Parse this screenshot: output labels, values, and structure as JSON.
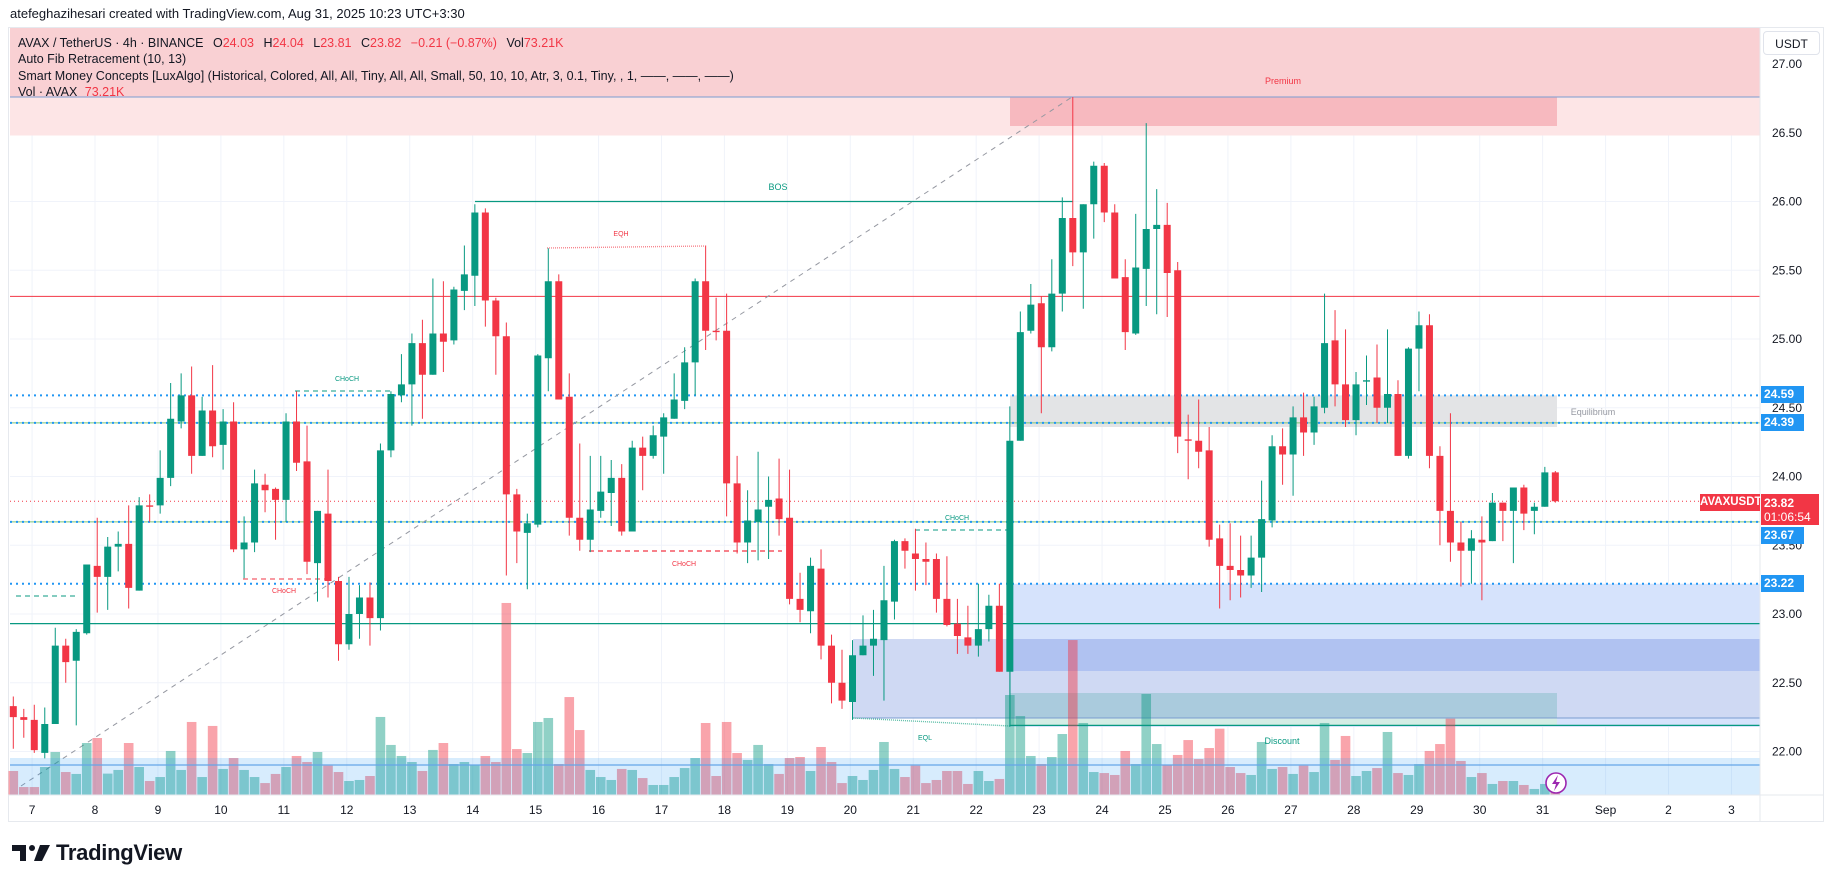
{
  "header": {
    "caption": "atefeghazihesari created with TradingView.com, Aug 31, 2025 10:23 UTC+3:30"
  },
  "legend": {
    "symbol": "AVAX / TetherUS · 4h · BINANCE",
    "o_label": "O",
    "o": "24.03",
    "h_label": "H",
    "h": "24.04",
    "l_label": "L",
    "l": "23.81",
    "c_label": "C",
    "c": "23.82",
    "change": "−0.21 (−0.87%)",
    "vol_label": "Vol",
    "vol": "73.21K",
    "indicator1": "Auto Fib Retracement (10, 13)",
    "indicator2": "Smart Money Concepts [LuxAlgo] (Historical, Colored, All, All, Tiny, All, All, Small, 50, 10, 10, Atr, 3, 0.1, Tiny, , 1, ——, ——, ——)",
    "indicator3_label": "Vol · AVAX",
    "indicator3_value": "73.21K"
  },
  "price_axis": {
    "currency_button": "USDT",
    "ticks": [
      "22.00",
      "22.50",
      "23.00",
      "23.50",
      "24.00",
      "24.50",
      "25.00",
      "25.50",
      "26.00",
      "26.50",
      "27.00"
    ],
    "level_labels": [
      "24.59",
      "24.39",
      "23.67",
      "23.22"
    ],
    "current": {
      "symbol": "AVAXUSDT",
      "price": "23.82",
      "countdown": "01:06:54"
    }
  },
  "time_axis": {
    "labels": [
      "7",
      "8",
      "9",
      "10",
      "11",
      "12",
      "13",
      "14",
      "15",
      "16",
      "17",
      "18",
      "19",
      "20",
      "21",
      "22",
      "23",
      "24",
      "25",
      "26",
      "27",
      "28",
      "29",
      "30",
      "31",
      "Sep",
      "2",
      "3"
    ]
  },
  "annotations": {
    "premium": "Premium",
    "equilibrium": "Equilibrium",
    "discount": "Discount",
    "bos": "BOS",
    "eqh": "EQH",
    "eql": "EQL",
    "choch1": "CHoCH",
    "choch2": "CHoCH",
    "choch3": "CHoCH",
    "choch4": "CHoCH"
  },
  "colors": {
    "up": "#089981",
    "down": "#f23645",
    "level": "#2196f3",
    "accent": "#2962ff"
  },
  "chart_data": {
    "type": "candlestick",
    "symbol": "AVAXUSDT",
    "interval": "4h",
    "exchange": "BINANCE",
    "ylim": [
      21.72,
      27.26
    ],
    "levels": {
      "resistance": 25.31,
      "blue_dotted": [
        24.59,
        23.22
      ],
      "green": [
        24.39,
        23.67
      ],
      "current": 23.82,
      "support": 22.93,
      "discount_floor": 22.19,
      "bos": 26.0
    },
    "ohlc": [
      [
        22.33,
        22.4,
        22.02,
        22.25
      ],
      [
        22.25,
        22.31,
        22.1,
        22.23
      ],
      [
        22.23,
        22.34,
        21.99,
        22.01
      ],
      [
        21.99,
        22.32,
        21.95,
        22.2
      ],
      [
        22.2,
        22.9,
        22.2,
        22.77
      ],
      [
        22.77,
        22.82,
        22.5,
        22.65
      ],
      [
        22.66,
        22.89,
        22.19,
        22.87
      ],
      [
        22.86,
        23.36,
        22.85,
        23.36
      ],
      [
        23.35,
        23.7,
        23.01,
        23.27
      ],
      [
        23.27,
        23.56,
        23.03,
        23.49
      ],
      [
        23.49,
        23.6,
        23.31,
        23.51
      ],
      [
        23.51,
        23.79,
        23.04,
        23.19
      ],
      [
        23.17,
        23.85,
        23.17,
        23.79
      ],
      [
        23.79,
        23.87,
        23.67,
        23.78
      ],
      [
        23.79,
        24.19,
        23.73,
        23.99
      ],
      [
        23.99,
        24.68,
        23.93,
        24.42
      ],
      [
        24.4,
        24.75,
        24.35,
        24.59
      ],
      [
        24.59,
        24.8,
        24.02,
        24.15
      ],
      [
        24.15,
        24.58,
        24.15,
        24.48
      ],
      [
        24.48,
        24.81,
        24.14,
        24.22
      ],
      [
        24.23,
        24.49,
        24.05,
        24.4
      ],
      [
        24.4,
        24.54,
        23.45,
        23.47
      ],
      [
        23.47,
        23.71,
        23.26,
        23.52
      ],
      [
        23.52,
        24.05,
        23.45,
        23.95
      ],
      [
        23.94,
        24.02,
        23.74,
        23.9
      ],
      [
        23.91,
        23.92,
        23.54,
        23.83
      ],
      [
        23.83,
        24.46,
        23.67,
        24.4
      ],
      [
        24.4,
        24.62,
        24.04,
        24.1
      ],
      [
        24.11,
        24.37,
        23.29,
        23.38
      ],
      [
        23.37,
        23.75,
        23.09,
        23.75
      ],
      [
        23.73,
        24.05,
        23.12,
        23.24
      ],
      [
        23.24,
        23.27,
        22.66,
        22.78
      ],
      [
        22.78,
        23.27,
        22.74,
        23.0
      ],
      [
        23.0,
        23.21,
        22.82,
        23.12
      ],
      [
        23.12,
        23.23,
        22.77,
        22.97
      ],
      [
        22.97,
        24.24,
        22.88,
        24.19
      ],
      [
        24.19,
        24.62,
        24.14,
        24.6
      ],
      [
        24.59,
        24.89,
        24.54,
        24.67
      ],
      [
        24.67,
        25.04,
        24.37,
        24.97
      ],
      [
        24.97,
        25.14,
        24.42,
        24.74
      ],
      [
        24.74,
        25.44,
        24.74,
        25.04
      ],
      [
        25.04,
        25.42,
        24.76,
        24.98
      ],
      [
        24.99,
        25.38,
        24.96,
        25.36
      ],
      [
        25.35,
        25.68,
        25.21,
        25.47
      ],
      [
        25.46,
        25.98,
        25.24,
        25.92
      ],
      [
        25.92,
        25.95,
        25.09,
        25.28
      ],
      [
        25.28,
        25.3,
        24.74,
        25.02
      ],
      [
        25.02,
        25.12,
        23.28,
        23.87
      ],
      [
        23.87,
        23.91,
        23.37,
        23.6
      ],
      [
        23.59,
        23.73,
        23.18,
        23.66
      ],
      [
        23.65,
        24.89,
        23.63,
        24.88
      ],
      [
        24.86,
        25.66,
        24.62,
        25.42
      ],
      [
        25.42,
        25.47,
        24.56,
        24.56
      ],
      [
        24.58,
        24.75,
        23.57,
        23.7
      ],
      [
        23.7,
        24.24,
        23.46,
        23.54
      ],
      [
        23.54,
        24.15,
        23.45,
        23.76
      ],
      [
        23.75,
        24.15,
        23.7,
        23.89
      ],
      [
        23.88,
        24.12,
        23.64,
        23.99
      ],
      [
        23.99,
        24.09,
        23.57,
        23.6
      ],
      [
        23.6,
        24.26,
        23.6,
        24.21
      ],
      [
        24.21,
        24.29,
        23.9,
        24.15
      ],
      [
        24.15,
        24.37,
        24.13,
        24.3
      ],
      [
        24.29,
        24.46,
        24.02,
        24.43
      ],
      [
        24.42,
        24.75,
        24.42,
        24.56
      ],
      [
        24.55,
        24.94,
        24.49,
        24.83
      ],
      [
        24.83,
        25.44,
        24.59,
        25.42
      ],
      [
        25.42,
        25.68,
        24.92,
        25.06
      ],
      [
        25.06,
        25.3,
        24.99,
        25.05
      ],
      [
        25.06,
        25.33,
        23.71,
        23.95
      ],
      [
        23.95,
        24.15,
        23.44,
        23.52
      ],
      [
        23.52,
        23.9,
        23.37,
        23.68
      ],
      [
        23.67,
        24.18,
        23.39,
        23.76
      ],
      [
        23.78,
        24.0,
        23.4,
        23.83
      ],
      [
        23.84,
        24.13,
        23.57,
        23.69
      ],
      [
        23.7,
        24.05,
        23.07,
        23.11
      ],
      [
        23.11,
        23.3,
        22.94,
        23.03
      ],
      [
        23.02,
        23.41,
        22.86,
        23.35
      ],
      [
        23.33,
        23.47,
        22.67,
        22.77
      ],
      [
        22.77,
        22.85,
        22.35,
        22.5
      ],
      [
        22.5,
        22.74,
        22.31,
        22.37
      ],
      [
        22.36,
        22.81,
        22.23,
        22.7
      ],
      [
        22.7,
        22.99,
        22.7,
        22.77
      ],
      [
        22.77,
        23.03,
        22.55,
        22.82
      ],
      [
        22.81,
        23.35,
        22.37,
        23.1
      ],
      [
        23.09,
        23.54,
        22.96,
        23.53
      ],
      [
        23.53,
        23.55,
        23.33,
        23.46
      ],
      [
        23.44,
        23.62,
        23.17,
        23.4
      ],
      [
        23.4,
        23.52,
        23.21,
        23.38
      ],
      [
        23.4,
        23.44,
        23.01,
        23.11
      ],
      [
        23.11,
        23.42,
        22.91,
        22.92
      ],
      [
        22.93,
        23.11,
        22.71,
        22.84
      ],
      [
        22.83,
        23.06,
        22.71,
        22.77
      ],
      [
        22.77,
        23.22,
        22.69,
        22.89
      ],
      [
        22.89,
        23.14,
        22.8,
        23.06
      ],
      [
        23.06,
        23.22,
        22.58,
        22.58
      ],
      [
        22.58,
        24.51,
        22.18,
        24.26
      ],
      [
        24.26,
        25.2,
        24.26,
        25.05
      ],
      [
        25.06,
        25.4,
        25.04,
        25.25
      ],
      [
        25.26,
        25.31,
        24.46,
        24.94
      ],
      [
        24.94,
        25.58,
        24.91,
        25.33
      ],
      [
        25.33,
        26.03,
        25.2,
        25.88
      ],
      [
        25.88,
        26.76,
        25.53,
        25.63
      ],
      [
        25.63,
        25.98,
        25.22,
        25.98
      ],
      [
        25.98,
        26.29,
        25.73,
        26.26
      ],
      [
        26.26,
        26.28,
        25.85,
        25.92
      ],
      [
        25.92,
        25.98,
        25.44,
        25.44
      ],
      [
        25.45,
        25.58,
        24.92,
        25.05
      ],
      [
        25.04,
        25.91,
        25.03,
        25.52
      ],
      [
        25.51,
        26.57,
        25.24,
        25.8
      ],
      [
        25.8,
        26.09,
        25.18,
        25.83
      ],
      [
        25.83,
        25.99,
        25.16,
        25.48
      ],
      [
        25.5,
        25.56,
        24.17,
        24.29
      ],
      [
        24.27,
        24.45,
        23.98,
        24.26
      ],
      [
        24.26,
        24.56,
        24.06,
        24.18
      ],
      [
        24.19,
        24.36,
        23.49,
        23.54
      ],
      [
        23.55,
        23.65,
        23.04,
        23.35
      ],
      [
        23.35,
        23.66,
        23.1,
        23.32
      ],
      [
        23.32,
        23.57,
        23.12,
        23.28
      ],
      [
        23.28,
        23.57,
        23.19,
        23.41
      ],
      [
        23.41,
        23.97,
        23.16,
        23.69
      ],
      [
        23.68,
        24.3,
        23.63,
        24.22
      ],
      [
        24.22,
        24.35,
        23.94,
        24.16
      ],
      [
        24.16,
        24.51,
        23.86,
        24.43
      ],
      [
        24.43,
        24.61,
        24.15,
        24.32
      ],
      [
        24.32,
        24.58,
        24.23,
        24.51
      ],
      [
        24.5,
        25.33,
        24.46,
        24.97
      ],
      [
        24.99,
        25.21,
        24.51,
        24.67
      ],
      [
        24.67,
        25.07,
        24.36,
        24.41
      ],
      [
        24.41,
        24.76,
        24.3,
        24.67
      ],
      [
        24.69,
        24.88,
        24.52,
        24.7
      ],
      [
        24.72,
        24.96,
        24.39,
        24.5
      ],
      [
        24.5,
        25.07,
        24.39,
        24.6
      ],
      [
        24.6,
        24.7,
        24.15,
        24.15
      ],
      [
        24.15,
        24.94,
        24.13,
        24.93
      ],
      [
        24.93,
        25.2,
        24.62,
        25.1
      ],
      [
        25.1,
        25.18,
        24.06,
        24.15
      ],
      [
        24.15,
        24.22,
        23.5,
        23.75
      ],
      [
        23.75,
        24.46,
        23.38,
        23.52
      ],
      [
        23.52,
        23.67,
        23.2,
        23.46
      ],
      [
        23.46,
        23.61,
        23.22,
        23.55
      ],
      [
        23.54,
        23.71,
        23.1,
        23.52
      ],
      [
        23.53,
        23.88,
        23.53,
        23.81
      ],
      [
        23.81,
        23.81,
        23.53,
        23.75
      ],
      [
        23.75,
        23.92,
        23.37,
        23.92
      ],
      [
        23.92,
        23.94,
        23.61,
        23.73
      ],
      [
        23.75,
        23.81,
        23.58,
        23.78
      ],
      [
        23.78,
        24.07,
        23.78,
        24.03
      ],
      [
        24.03,
        24.04,
        23.81,
        23.82
      ]
    ],
    "volume_k": [
      211,
      70,
      70,
      246,
      378,
      202,
      185,
      457,
      501,
      188,
      220,
      457,
      246,
      123,
      158,
      387,
      220,
      642,
      158,
      607,
      229,
      325,
      220,
      158,
      105,
      185,
      246,
      343,
      290,
      378,
      258,
      202,
      123,
      132,
      167,
      686,
      440,
      343,
      290,
      211,
      396,
      457,
      272,
      290,
      264,
      343,
      290,
      1688,
      404,
      369,
      642,
      677,
      272,
      861,
      571,
      220,
      158,
      132,
      229,
      220,
      149,
      88,
      88,
      158,
      237,
      325,
      633,
      167,
      642,
      369,
      308,
      440,
      272,
      185,
      325,
      334,
      211,
      422,
      290,
      105,
      167,
      132,
      220,
      466,
      229,
      158,
      258,
      105,
      132,
      211,
      211,
      97,
      211,
      123,
      141,
      879,
      694,
      343,
      272,
      334,
      536,
      1362,
      633,
      202,
      193,
      176,
      387,
      272,
      888,
      448,
      261,
      352,
      483,
      316,
      413,
      583,
      246,
      193,
      176,
      466,
      229,
      246,
      185,
      258,
      202,
      633,
      308,
      519,
      167,
      211,
      237,
      554,
      193,
      176,
      272,
      387,
      448,
      671,
      299,
      158,
      193,
      97,
      123,
      123,
      88,
      53,
      97,
      73.21
    ]
  }
}
